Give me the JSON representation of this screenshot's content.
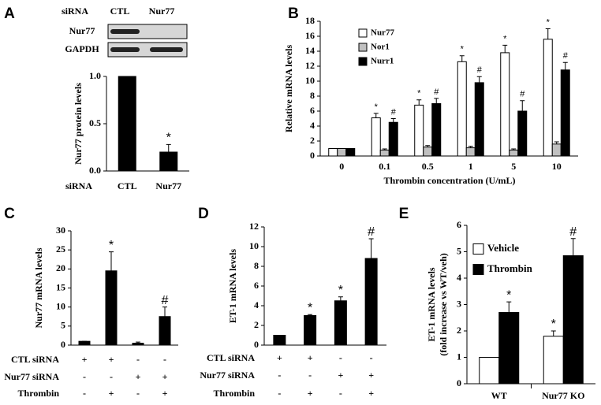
{
  "chart_data": [
    {
      "panel": "A",
      "type": "bar",
      "blot": {
        "label": "siRNA",
        "lanes": [
          "CTL",
          "Nur77"
        ],
        "rows": [
          "Nur77",
          "GAPDH"
        ]
      },
      "ylabel": "Nur77 protein levels",
      "xlabel": "siRNA",
      "categories": [
        "CTL",
        "Nur77"
      ],
      "values": [
        1.0,
        0.2
      ],
      "errors": [
        0,
        0.08
      ],
      "annotations": [
        null,
        "*"
      ],
      "color": "#000000",
      "ylim": [
        0,
        1
      ],
      "yticks": [
        {
          "value": 0,
          "label": "0.0"
        },
        {
          "value": 0.5,
          "label": "0.5"
        },
        {
          "value": 1,
          "label": "1.0"
        }
      ]
    },
    {
      "panel": "B",
      "type": "bar",
      "ylabel": "Relative mRNA levels",
      "xlabel": "Thrombin concentration (U/mL)",
      "categories": [
        "0",
        "0.1",
        "0.5",
        "1",
        "5",
        "10"
      ],
      "series": [
        {
          "name": "Nur77",
          "color": "#ffffff",
          "values": [
            1,
            5.1,
            6.8,
            12.6,
            13.8,
            15.6
          ],
          "errors": [
            0,
            0.6,
            0.7,
            0.8,
            1.0,
            1.4
          ],
          "annotations": [
            null,
            "*",
            "*",
            "*",
            "*",
            "*"
          ]
        },
        {
          "name": "Nor1",
          "color": "#c0c0c0",
          "values": [
            1,
            0.8,
            1.2,
            1.1,
            0.8,
            1.6
          ],
          "errors": [
            0,
            0.15,
            0.2,
            0.2,
            0.15,
            0.3
          ],
          "annotations": [
            null,
            null,
            null,
            null,
            null,
            null
          ]
        },
        {
          "name": "Nurr1",
          "color": "#000000",
          "values": [
            1,
            4.5,
            7.0,
            9.8,
            6.0,
            11.5
          ],
          "errors": [
            0,
            0.5,
            0.7,
            0.8,
            1.4,
            1.0
          ],
          "annotations": [
            null,
            "#",
            "#",
            "#",
            "#",
            "#"
          ]
        }
      ],
      "ylim": [
        0,
        18
      ],
      "yticks": [
        0,
        2,
        4,
        6,
        8,
        10,
        12,
        14,
        16,
        18
      ]
    },
    {
      "panel": "C",
      "type": "bar",
      "ylabel": "Nur77 mRNA levels",
      "categories": [
        null,
        null,
        null,
        null
      ],
      "values": [
        1,
        19.5,
        0.5,
        7.5
      ],
      "errors": [
        0,
        5,
        0.3,
        2.5
      ],
      "annotations": [
        null,
        "*",
        null,
        "#"
      ],
      "color": "#000000",
      "ylim": [
        0,
        30
      ],
      "yticks": [
        0,
        5,
        10,
        15,
        20,
        25,
        30
      ],
      "conditions": [
        {
          "label": "CTL siRNA",
          "values": [
            "+",
            "+",
            "-",
            "-"
          ]
        },
        {
          "label": "Nur77 siRNA",
          "values": [
            "-",
            "-",
            "+",
            "+"
          ]
        },
        {
          "label": "Thrombin",
          "values": [
            "-",
            "+",
            "-",
            "+"
          ]
        }
      ]
    },
    {
      "panel": "D",
      "type": "bar",
      "ylabel": "ET-1 mRNA levels",
      "categories": [
        null,
        null,
        null,
        null
      ],
      "values": [
        1,
        3,
        4.5,
        8.8
      ],
      "errors": [
        0,
        0.1,
        0.4,
        2.0
      ],
      "annotations": [
        null,
        "*",
        "*",
        "#"
      ],
      "color": "#000000",
      "ylim": [
        0,
        12
      ],
      "yticks": [
        0,
        2,
        4,
        6,
        8,
        10,
        12
      ],
      "conditions": [
        {
          "label": "CTL siRNA",
          "values": [
            "+",
            "+",
            "-",
            "-"
          ]
        },
        {
          "label": "Nur77 siRNA",
          "values": [
            "-",
            "-",
            "+",
            "+"
          ]
        },
        {
          "label": "Thrombin",
          "values": [
            "-",
            "+",
            "-",
            "+"
          ]
        }
      ]
    },
    {
      "panel": "E",
      "type": "bar",
      "ylabel": [
        "ET-1 mRNA levels",
        "(fold increase vs WT/veh)"
      ],
      "categories": [
        "WT",
        "Nur77 KO"
      ],
      "series": [
        {
          "name": "Vehicle",
          "color": "#ffffff",
          "values": [
            1,
            1.8
          ],
          "errors": [
            0,
            0.2
          ],
          "annotations": [
            null,
            "*"
          ]
        },
        {
          "name": "Thrombin",
          "color": "#000000",
          "values": [
            2.7,
            4.85
          ],
          "errors": [
            0.4,
            0.65
          ],
          "annotations": [
            "*",
            "#"
          ]
        }
      ],
      "ylim": [
        0,
        6
      ],
      "yticks": [
        0,
        1,
        2,
        3,
        4,
        5,
        6
      ]
    }
  ]
}
